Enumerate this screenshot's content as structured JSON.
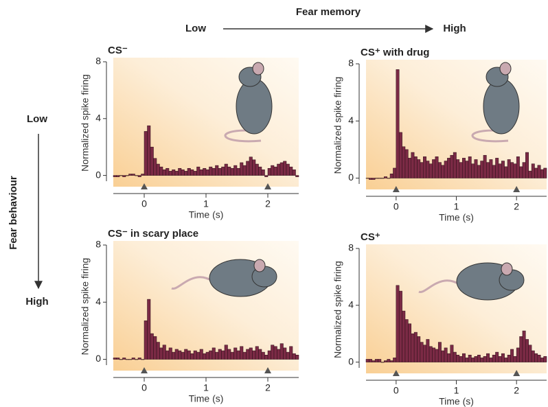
{
  "figure": {
    "top_title": "Fear memory",
    "top_low": "Low",
    "top_high": "High",
    "side_title": "Fear behaviour",
    "side_low": "Low",
    "side_high": "High"
  },
  "chart_data": [
    {
      "type": "histogram",
      "title": "CS⁻",
      "ylabel": "Normalized spike firing",
      "xlabel": "Time (s)",
      "color": "#7b2a45",
      "xlim": [
        -0.5,
        2.5
      ],
      "ylim": [
        -0.6,
        8
      ],
      "xticks": [
        0,
        1,
        2
      ],
      "yticks": [
        0,
        4,
        8
      ],
      "event_markers": [
        0,
        2
      ],
      "bins": [
        -0.5,
        -0.45,
        -0.4,
        -0.35,
        -0.3,
        -0.25,
        -0.2,
        -0.15,
        -0.1,
        -0.05,
        0,
        0.05,
        0.1,
        0.15,
        0.2,
        0.25,
        0.3,
        0.35,
        0.4,
        0.45,
        0.5,
        0.55,
        0.6,
        0.65,
        0.7,
        0.75,
        0.8,
        0.85,
        0.9,
        0.95,
        1,
        1.05,
        1.1,
        1.15,
        1.2,
        1.25,
        1.3,
        1.35,
        1.4,
        1.45,
        1.5,
        1.55,
        1.6,
        1.65,
        1.7,
        1.75,
        1.8,
        1.85,
        1.9,
        1.95,
        2,
        2.05,
        2.1,
        2.15,
        2.2,
        2.25,
        2.3,
        2.35,
        2.4,
        2.45,
        2.5
      ],
      "values": [
        -0.1,
        -0.1,
        0,
        -0.1,
        0,
        0.1,
        0.1,
        0,
        -0.1,
        0.1,
        3.1,
        3.5,
        2.0,
        1.2,
        0.8,
        0.6,
        0.4,
        0.5,
        0.3,
        0.4,
        0.3,
        0.5,
        0.4,
        0.3,
        0.5,
        0.4,
        0.3,
        0.6,
        0.4,
        0.5,
        0.4,
        0.6,
        0.5,
        0.7,
        0.5,
        0.6,
        0.8,
        0.6,
        0.5,
        0.7,
        0.5,
        0.9,
        0.7,
        1.0,
        1.3,
        1.1,
        0.8,
        0.6,
        0.4,
        -0.1,
        0.5,
        0.7,
        0.6,
        0.8,
        0.9,
        1.0,
        0.8,
        0.6,
        0.4,
        -0.1
      ]
    },
    {
      "type": "histogram",
      "title": "CS⁺ with drug",
      "ylabel": "Normalized spike firing",
      "xlabel": "Time (s)",
      "color": "#7b2a45",
      "xlim": [
        -0.5,
        2.5
      ],
      "ylim": [
        -0.6,
        8
      ],
      "xticks": [
        0,
        1,
        2
      ],
      "yticks": [
        0,
        4,
        8
      ],
      "event_markers": [
        0,
        2
      ],
      "bins": [
        -0.5,
        -0.45,
        -0.4,
        -0.35,
        -0.3,
        -0.25,
        -0.2,
        -0.15,
        -0.1,
        -0.05,
        0,
        0.05,
        0.1,
        0.15,
        0.2,
        0.25,
        0.3,
        0.35,
        0.4,
        0.45,
        0.5,
        0.55,
        0.6,
        0.65,
        0.7,
        0.75,
        0.8,
        0.85,
        0.9,
        0.95,
        1,
        1.05,
        1.1,
        1.15,
        1.2,
        1.25,
        1.3,
        1.35,
        1.4,
        1.45,
        1.5,
        1.55,
        1.6,
        1.65,
        1.7,
        1.75,
        1.8,
        1.85,
        1.9,
        1.95,
        2,
        2.05,
        2.1,
        2.15,
        2.2,
        2.25,
        2.3,
        2.35,
        2.4,
        2.45,
        2.5
      ],
      "values": [
        0,
        -0.1,
        -0.1,
        0,
        0,
        0,
        0.1,
        0,
        0.3,
        0.7,
        7.6,
        3.2,
        2.2,
        2.0,
        1.4,
        1.8,
        1.5,
        1.3,
        1.1,
        1.5,
        1.2,
        1.0,
        1.3,
        1.5,
        1.1,
        0.9,
        1.2,
        1.4,
        1.6,
        1.8,
        1.3,
        1.1,
        1.4,
        1.2,
        1.5,
        1.0,
        1.3,
        0.9,
        1.2,
        1.6,
        1.1,
        1.3,
        0.9,
        1.4,
        1.0,
        1.2,
        0.8,
        1.3,
        1.1,
        1.0,
        1.5,
        0.8,
        1.1,
        1.8,
        0.5,
        1.0,
        0.7,
        0.9,
        0.6,
        0.7
      ]
    },
    {
      "type": "histogram",
      "title": "CS⁻ in scary place",
      "ylabel": "Normalized spike firing",
      "xlabel": "Time (s)",
      "color": "#7b2a45",
      "xlim": [
        -0.5,
        2.5
      ],
      "ylim": [
        -0.6,
        8
      ],
      "xticks": [
        0,
        1,
        2
      ],
      "yticks": [
        0,
        4,
        8
      ],
      "event_markers": [
        0,
        2
      ],
      "bins": [
        -0.5,
        -0.45,
        -0.4,
        -0.35,
        -0.3,
        -0.25,
        -0.2,
        -0.15,
        -0.1,
        -0.05,
        0,
        0.05,
        0.1,
        0.15,
        0.2,
        0.25,
        0.3,
        0.35,
        0.4,
        0.45,
        0.5,
        0.55,
        0.6,
        0.65,
        0.7,
        0.75,
        0.8,
        0.85,
        0.9,
        0.95,
        1,
        1.05,
        1.1,
        1.15,
        1.2,
        1.25,
        1.3,
        1.35,
        1.4,
        1.45,
        1.5,
        1.55,
        1.6,
        1.65,
        1.7,
        1.75,
        1.8,
        1.85,
        1.9,
        1.95,
        2,
        2.05,
        2.1,
        2.15,
        2.2,
        2.25,
        2.3,
        2.35,
        2.4,
        2.45,
        2.5
      ],
      "values": [
        0.1,
        0.1,
        0,
        0.1,
        0,
        0,
        0.1,
        0,
        0.1,
        0,
        2.7,
        4.2,
        1.8,
        1.6,
        1.2,
        0.8,
        1.0,
        0.6,
        0.8,
        0.5,
        0.7,
        0.6,
        0.5,
        0.7,
        0.6,
        0.4,
        0.6,
        0.5,
        0.7,
        0.4,
        0.5,
        0.6,
        0.8,
        0.5,
        0.7,
        0.6,
        1.0,
        0.7,
        0.5,
        0.8,
        0.6,
        0.9,
        0.5,
        0.7,
        0.8,
        0.6,
        0.9,
        0.7,
        0.5,
        0.3,
        0.6,
        1.0,
        0.9,
        0.7,
        1.1,
        0.8,
        0.5,
        0.9,
        0.4,
        0.3
      ]
    },
    {
      "type": "histogram",
      "title": "CS⁺",
      "ylabel": "Normalized spike firing",
      "xlabel": "Time (s)",
      "color": "#7b2a45",
      "xlim": [
        -0.5,
        2.5
      ],
      "ylim": [
        -0.6,
        8
      ],
      "xticks": [
        0,
        1,
        2
      ],
      "yticks": [
        0,
        4,
        8
      ],
      "event_markers": [
        0,
        2
      ],
      "bins": [
        -0.5,
        -0.45,
        -0.4,
        -0.35,
        -0.3,
        -0.25,
        -0.2,
        -0.15,
        -0.1,
        -0.05,
        0,
        0.05,
        0.1,
        0.15,
        0.2,
        0.25,
        0.3,
        0.35,
        0.4,
        0.45,
        0.5,
        0.55,
        0.6,
        0.65,
        0.7,
        0.75,
        0.8,
        0.85,
        0.9,
        0.95,
        1,
        1.05,
        1.1,
        1.15,
        1.2,
        1.25,
        1.3,
        1.35,
        1.4,
        1.45,
        1.5,
        1.55,
        1.6,
        1.65,
        1.7,
        1.75,
        1.8,
        1.85,
        1.9,
        1.95,
        2,
        2.05,
        2.1,
        2.15,
        2.2,
        2.25,
        2.3,
        2.35,
        2.4,
        2.45,
        2.5
      ],
      "values": [
        0.2,
        0.2,
        0.1,
        0.2,
        0.2,
        0,
        0.1,
        0.2,
        0.1,
        0.3,
        5.4,
        5.0,
        3.6,
        3.0,
        2.7,
        2.0,
        2.1,
        1.8,
        1.4,
        1.2,
        1.6,
        1.1,
        1.0,
        0.9,
        1.4,
        0.8,
        1.0,
        0.6,
        1.2,
        0.7,
        0.5,
        0.4,
        0.6,
        0.3,
        0.5,
        0.3,
        0.4,
        0.5,
        0.3,
        0.4,
        0.6,
        0.3,
        0.5,
        0.7,
        0.4,
        0.6,
        0.3,
        0.5,
        0.9,
        0.4,
        1.0,
        1.8,
        2.2,
        1.6,
        1.2,
        0.8,
        0.6,
        0.5,
        0.3,
        0.4
      ]
    }
  ]
}
